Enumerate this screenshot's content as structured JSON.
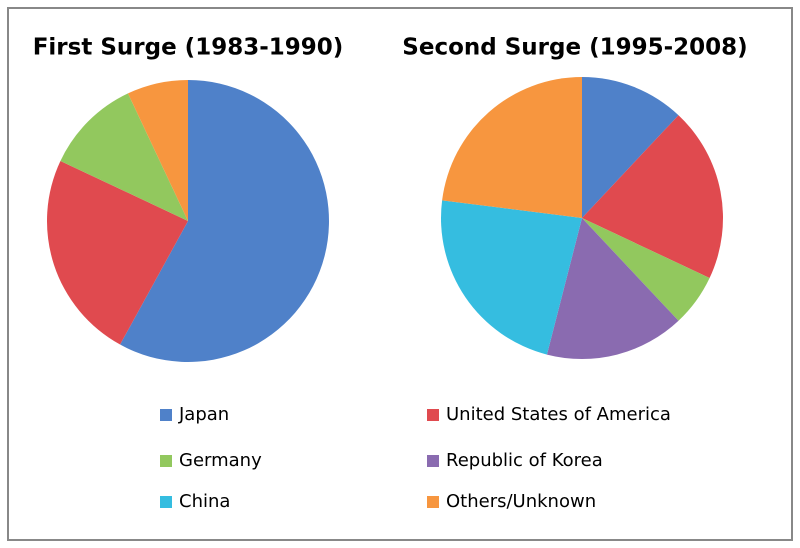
{
  "chart_data": [
    {
      "type": "pie",
      "title": "First Surge (1983-1990)",
      "categories": [
        "Japan",
        "United States of America",
        "Germany",
        "Others/Unknown"
      ],
      "values": [
        58,
        24,
        11,
        7
      ],
      "colors": [
        "#4f81c9",
        "#e04a4f",
        "#92c85e",
        "#f7963f"
      ]
    },
    {
      "type": "pie",
      "title": "Second Surge (1995-2008)",
      "categories": [
        "Japan",
        "United States of America",
        "Germany",
        "Republic of Korea",
        "China",
        "Others/Unknown"
      ],
      "values": [
        12,
        20,
        6,
        16,
        23,
        23
      ],
      "colors": [
        "#4f81c9",
        "#e04a4f",
        "#92c85e",
        "#8a6bb0",
        "#35bde0",
        "#f7963f"
      ]
    }
  ]
}
